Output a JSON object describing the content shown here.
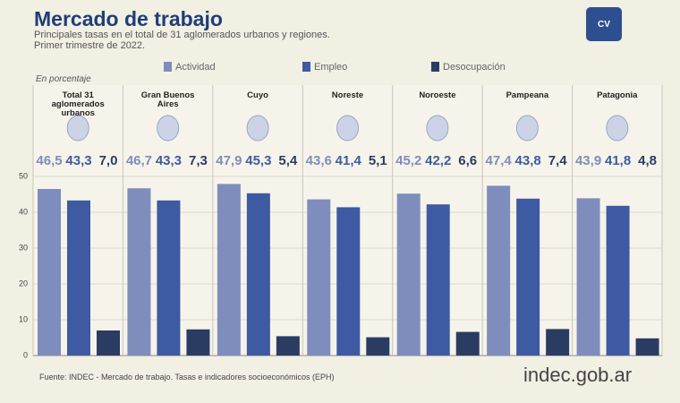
{
  "title": "Mercado de trabajo",
  "subtitle_lines": [
    "Principales tasas en el total de 31 aglomerados urbanos y regiones.",
    "Primer trimestre de 2022."
  ],
  "icon_label": "CV",
  "source": "Fuente: INDEC - Mercado de trabajo. Tasas e indicadores socioeconómicos (EPH)",
  "logo": "indec.gob.ar",
  "chart_data": {
    "type": "bar",
    "unit_label": "En porcentaje",
    "categories": [
      "Total 31 aglomerados urbanos",
      "Gran Buenos Aires",
      "Cuyo",
      "Noreste",
      "Noroeste",
      "Pampeana",
      "Patagonia"
    ],
    "series": [
      {
        "name": "Actividad",
        "color": "#7f8dbd",
        "label_color": "#7f8dbd",
        "values": [
          46.5,
          46.7,
          47.9,
          43.6,
          45.2,
          47.4,
          43.9
        ],
        "value_labels": [
          "46,5",
          "46,7",
          "47,9",
          "43,6",
          "45,2",
          "47,4",
          "43,9"
        ]
      },
      {
        "name": "Empleo",
        "color": "#3e5aa3",
        "label_color": "#3e5aa3",
        "values": [
          43.3,
          43.3,
          45.3,
          41.4,
          42.2,
          43.8,
          41.8
        ],
        "value_labels": [
          "43,3",
          "43,3",
          "45,3",
          "41,4",
          "42,2",
          "43,8",
          "41,8"
        ]
      },
      {
        "name": "Desocupación",
        "color": "#2b3c63",
        "label_color": "#2b3c63",
        "values": [
          7,
          7.3,
          5.4,
          5.1,
          6.6,
          7.4,
          4.8
        ],
        "value_labels": [
          "7,0",
          "7,3",
          "5,4",
          "5,1",
          "6,6",
          "7,4",
          "4,8"
        ]
      }
    ],
    "ylim": [
      0,
      50
    ],
    "yticks": [
      0,
      10,
      20,
      30,
      40,
      50
    ],
    "grid": true
  }
}
